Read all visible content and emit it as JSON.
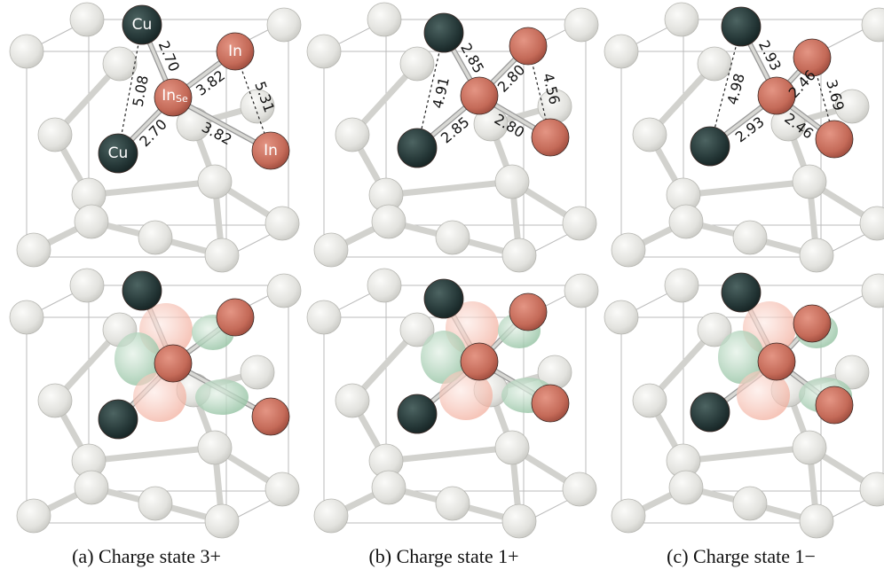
{
  "panels": [
    {
      "caption": "(a) Charge state 3+",
      "distances": [
        "2.70",
        "5.08",
        "3.82",
        "5.31",
        "2.70",
        "3.82"
      ],
      "atom_labels": {
        "cu_top": "Cu",
        "in_top": "In",
        "in_se": "In",
        "in_se_sub": "Se",
        "cu_bottom": "Cu",
        "in_bottom": "In"
      }
    },
    {
      "caption": "(b) Charge state 1+",
      "distances": [
        "2.85",
        "4.91",
        "2.80",
        "4.56",
        "2.85",
        "2.80"
      ]
    },
    {
      "caption": "(c) Charge state 1−",
      "distances": [
        "2.93",
        "4.98",
        "2.46",
        "3.69",
        "2.93",
        "2.46"
      ]
    }
  ]
}
